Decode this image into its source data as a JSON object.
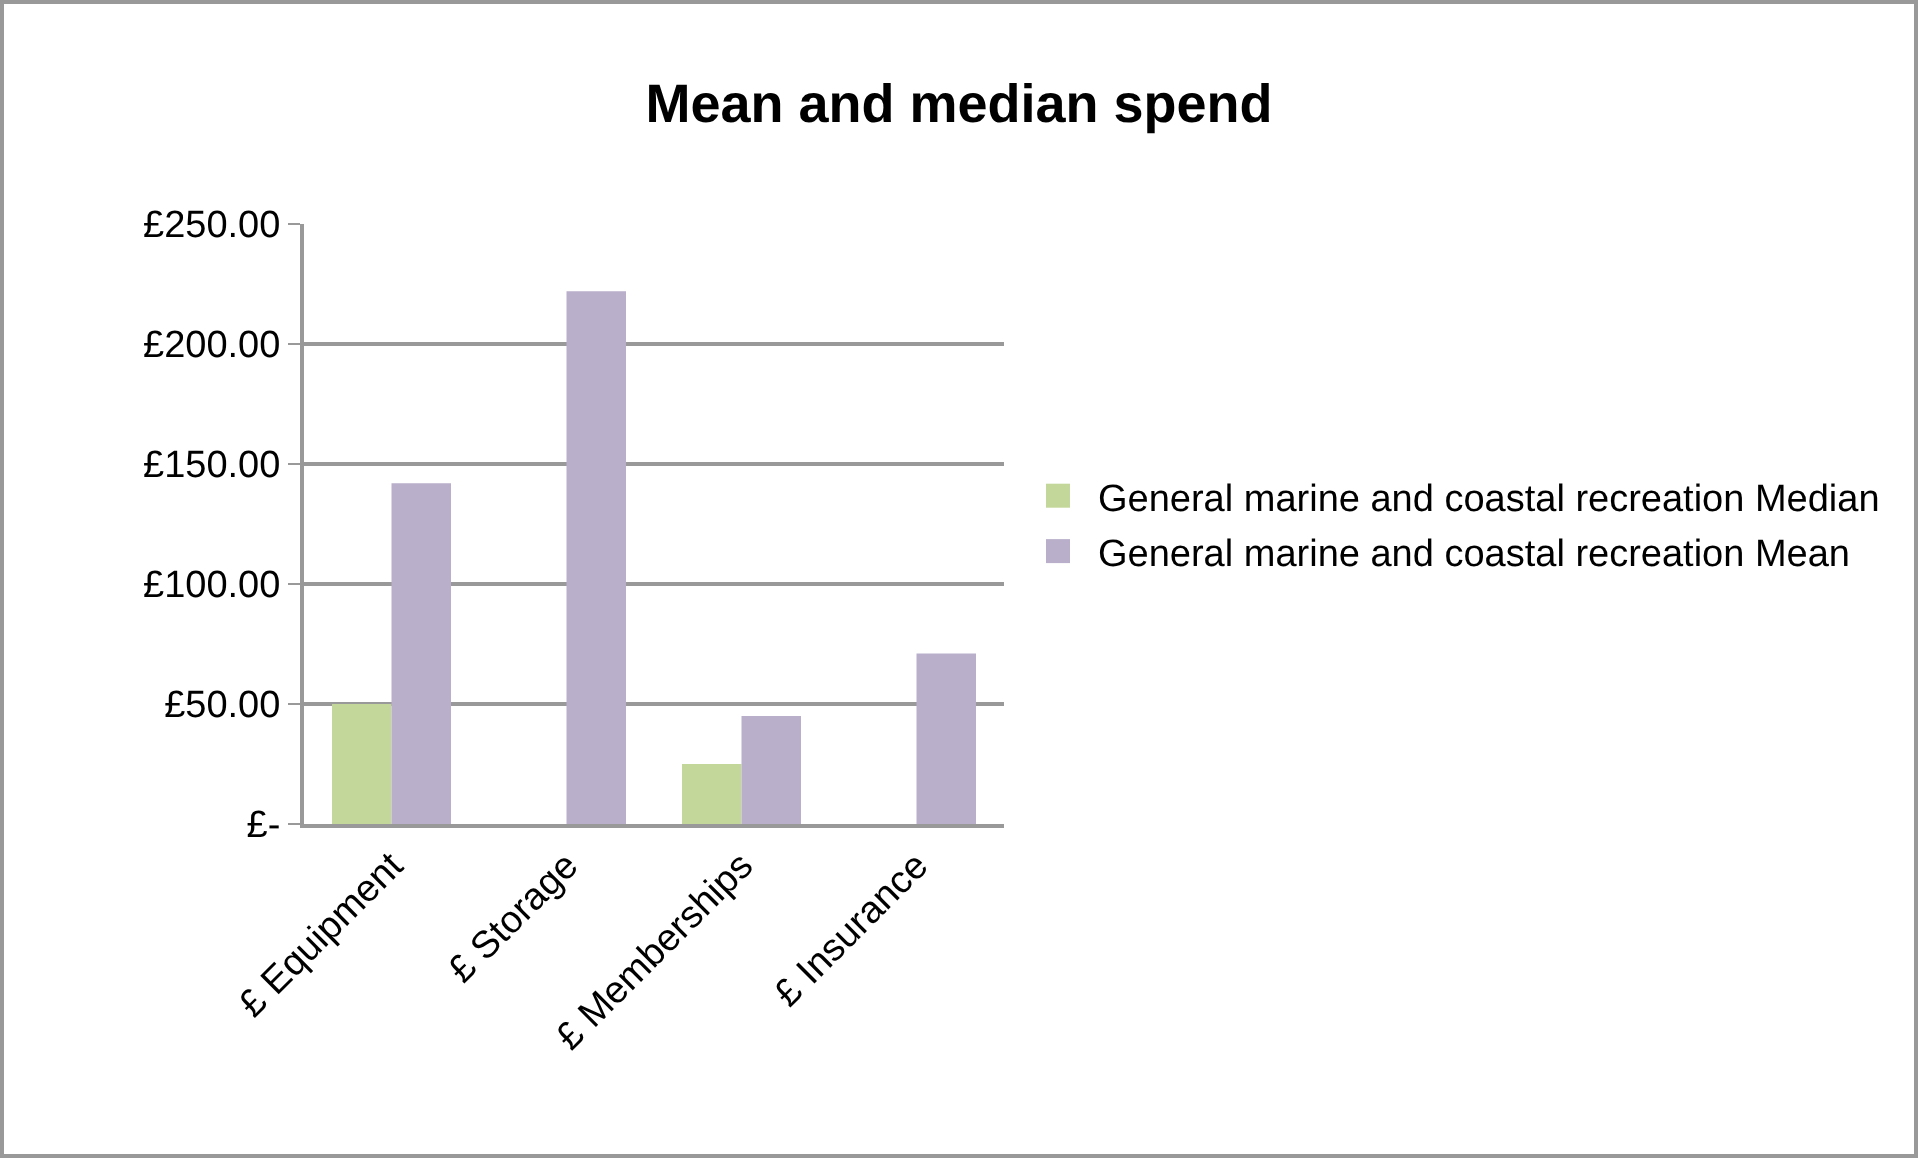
{
  "chart_data": {
    "type": "bar",
    "title": "Mean and median spend",
    "categories": [
      "£ Equipment",
      "£ Storage",
      "£ Memberships",
      "£ Insurance"
    ],
    "series": [
      {
        "name": "General marine and coastal recreation Median",
        "color": "#c4d79b",
        "values": [
          50,
          null,
          25,
          null
        ]
      },
      {
        "name": "General marine and coastal recreation Mean",
        "color": "#b9afcb",
        "values": [
          142,
          222,
          45,
          71
        ]
      }
    ],
    "ylim": [
      0,
      250
    ],
    "yticks": [
      {
        "value": 0,
        "label": "£-"
      },
      {
        "value": 50,
        "label": "£50.00"
      },
      {
        "value": 100,
        "label": "£100.00"
      },
      {
        "value": 150,
        "label": "£150.00"
      },
      {
        "value": 200,
        "label": "£200.00"
      },
      {
        "value": 250,
        "label": "£250.00"
      }
    ],
    "grid": "y",
    "legend": "right"
  }
}
